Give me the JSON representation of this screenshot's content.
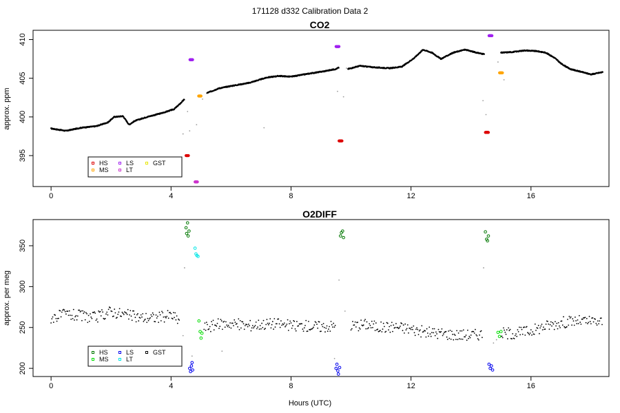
{
  "figure_title": "171128   d332   Calibration Data 2",
  "xlabel": "Hours (UTC)",
  "chart_data": [
    {
      "type": "scatter",
      "title": "CO2",
      "ylabel": "approx. ppm",
      "xlim": [
        -0.6,
        18.6
      ],
      "ylim": [
        391.0,
        411.2
      ],
      "xticks": [
        0,
        4,
        8,
        12,
        16
      ],
      "yticks": [
        395,
        400,
        405,
        410
      ],
      "grid": false,
      "legend_position": "bottom-left",
      "legend": [
        {
          "label": "HS",
          "color": "#dd0000"
        },
        {
          "label": "MS",
          "color": "#ffa500"
        },
        {
          "label": "LS",
          "color": "#a020f0"
        },
        {
          "label": "LT",
          "color": "#cc33cc"
        },
        {
          "label": "GST",
          "color": "#e6e600"
        }
      ],
      "ambient_series": {
        "color": "#000000",
        "segments": [
          [
            [
              0.0,
              398.5
            ],
            [
              0.5,
              398.2
            ],
            [
              1.0,
              398.6
            ],
            [
              1.5,
              398.8
            ],
            [
              1.9,
              399.3
            ],
            [
              2.1,
              400.0
            ],
            [
              2.4,
              400.1
            ],
            [
              2.6,
              399.0
            ],
            [
              2.8,
              399.5
            ],
            [
              3.2,
              400.0
            ],
            [
              3.7,
              400.5
            ],
            [
              4.1,
              401.0
            ],
            [
              4.3,
              401.7
            ],
            [
              4.45,
              402.3
            ]
          ],
          [
            [
              5.2,
              403.1
            ],
            [
              5.6,
              403.7
            ],
            [
              6.0,
              404.0
            ],
            [
              6.6,
              404.4
            ],
            [
              7.2,
              405.1
            ],
            [
              7.6,
              405.3
            ],
            [
              8.0,
              405.2
            ],
            [
              8.6,
              405.6
            ],
            [
              9.1,
              405.9
            ],
            [
              9.5,
              406.2
            ],
            [
              9.6,
              406.4
            ]
          ],
          [
            [
              9.9,
              406.2
            ],
            [
              10.3,
              406.6
            ],
            [
              10.8,
              406.4
            ],
            [
              11.3,
              406.3
            ],
            [
              11.7,
              406.5
            ],
            [
              12.1,
              407.6
            ],
            [
              12.4,
              408.7
            ],
            [
              12.7,
              408.3
            ],
            [
              13.0,
              407.5
            ],
            [
              13.4,
              408.3
            ],
            [
              13.8,
              408.7
            ],
            [
              14.2,
              408.3
            ],
            [
              14.45,
              408.1
            ]
          ],
          [
            [
              15.0,
              408.3
            ],
            [
              15.4,
              408.4
            ],
            [
              15.8,
              408.6
            ],
            [
              16.2,
              408.5
            ],
            [
              16.5,
              408.3
            ],
            [
              16.8,
              407.6
            ],
            [
              17.0,
              406.9
            ],
            [
              17.3,
              406.2
            ],
            [
              17.6,
              405.9
            ],
            [
              18.0,
              405.5
            ],
            [
              18.4,
              405.8
            ]
          ]
        ]
      },
      "calibration_points": [
        {
          "label": "HS",
          "color": "#dd0000",
          "x": [
            4.5,
            4.58
          ],
          "y": [
            395.0,
            395.0
          ]
        },
        {
          "label": "MS",
          "color": "#ffa500",
          "x": [
            4.92,
            5.0
          ],
          "y": [
            402.7,
            402.7
          ]
        },
        {
          "label": "LS",
          "color": "#a020f0",
          "x": [
            4.63,
            4.72
          ],
          "y": [
            407.4,
            407.4
          ]
        },
        {
          "label": "LT",
          "color": "#cc33cc",
          "x": [
            4.8,
            4.88
          ],
          "y": [
            391.6,
            391.6
          ]
        },
        {
          "label": "HS",
          "color": "#dd0000",
          "x": [
            9.6,
            9.7
          ],
          "y": [
            396.9,
            396.9
          ]
        },
        {
          "label": "LS",
          "color": "#a020f0",
          "x": [
            9.5,
            9.6
          ],
          "y": [
            409.1,
            409.1
          ]
        },
        {
          "label": "HS",
          "color": "#dd0000",
          "x": [
            14.48,
            14.58
          ],
          "y": [
            398.0,
            398.0
          ]
        },
        {
          "label": "MS",
          "color": "#ffa500",
          "x": [
            14.95,
            15.05
          ],
          "y": [
            405.7,
            405.7
          ]
        },
        {
          "label": "LS",
          "color": "#a020f0",
          "x": [
            14.6,
            14.7
          ],
          "y": [
            410.5,
            410.5
          ]
        }
      ],
      "transition_points": {
        "color": "#9a9a9a",
        "x": [
          4.4,
          4.55,
          4.62,
          4.85,
          5.05,
          7.1,
          9.55,
          9.75,
          9.85,
          14.4,
          14.5,
          14.9,
          15.1
        ],
        "y": [
          397.8,
          400.7,
          398.2,
          399.0,
          402.3,
          398.6,
          403.3,
          402.6,
          406.3,
          402.1,
          400.3,
          407.1,
          404.8
        ]
      }
    },
    {
      "type": "scatter",
      "title": "O2DIFF",
      "ylabel": "approx. per meg",
      "xlim": [
        -0.6,
        18.6
      ],
      "ylim": [
        190,
        382
      ],
      "xticks": [
        0,
        4,
        8,
        12,
        16
      ],
      "yticks": [
        200,
        250,
        300,
        350
      ],
      "grid": false,
      "legend_position": "bottom-left",
      "legend": [
        {
          "label": "HS",
          "color": "#007700"
        },
        {
          "label": "MS",
          "color": "#00dd00"
        },
        {
          "label": "LS",
          "color": "#0000ee"
        },
        {
          "label": "LT",
          "color": "#00e5e5"
        },
        {
          "label": "GST",
          "color": "#000000"
        }
      ],
      "ambient_series": {
        "color": "#000000",
        "segments": [
          [
            [
              0.0,
              262
            ],
            [
              0.5,
              266
            ],
            [
              1.0,
              264
            ],
            [
              1.5,
              262
            ],
            [
              2.0,
              270
            ],
            [
              2.4,
              266
            ],
            [
              3.0,
              262
            ],
            [
              3.5,
              262
            ],
            [
              4.0,
              265
            ],
            [
              4.3,
              258
            ]
          ],
          [
            [
              5.1,
              250
            ],
            [
              5.6,
              254
            ],
            [
              6.0,
              255
            ],
            [
              6.5,
              252
            ],
            [
              7.0,
              254
            ],
            [
              7.5,
              255
            ],
            [
              8.0,
              252
            ],
            [
              8.5,
              252
            ],
            [
              9.0,
              251
            ],
            [
              9.5,
              252
            ]
          ],
          [
            [
              10.0,
              252
            ],
            [
              10.5,
              254
            ],
            [
              11.0,
              250
            ],
            [
              11.5,
              251
            ],
            [
              12.0,
              248
            ],
            [
              12.5,
              244
            ],
            [
              13.0,
              243
            ],
            [
              13.5,
              241
            ],
            [
              14.0,
              241
            ],
            [
              14.4,
              242
            ]
          ],
          [
            [
              15.0,
              243
            ],
            [
              15.5,
              243
            ],
            [
              16.0,
              246
            ],
            [
              16.5,
              252
            ],
            [
              17.0,
              256
            ],
            [
              17.5,
              258
            ],
            [
              18.0,
              257
            ],
            [
              18.4,
              257
            ]
          ]
        ],
        "scatter_amplitude": 7
      },
      "calibration_points": [
        {
          "label": "HS",
          "color": "#007700",
          "x": [
            4.5,
            4.52,
            4.55,
            4.57,
            4.6
          ],
          "y": [
            372,
            365,
            378,
            362,
            368
          ]
        },
        {
          "label": "LS",
          "color": "#0000ee",
          "x": [
            4.62,
            4.65,
            4.68,
            4.7,
            4.72
          ],
          "y": [
            200,
            196,
            203,
            207,
            198
          ]
        },
        {
          "label": "LT",
          "color": "#00e5e5",
          "x": [
            4.8,
            4.83,
            4.86,
            4.9
          ],
          "y": [
            347,
            340,
            338,
            337
          ]
        },
        {
          "label": "MS",
          "color": "#00dd00",
          "x": [
            4.93,
            4.97,
            5.0,
            5.03
          ],
          "y": [
            258,
            245,
            237,
            243
          ]
        },
        {
          "label": "LS",
          "color": "#0000ee",
          "x": [
            9.5,
            9.53,
            9.56,
            9.58,
            9.62
          ],
          "y": [
            200,
            205,
            197,
            193,
            201
          ]
        },
        {
          "label": "HS",
          "color": "#007700",
          "x": [
            9.65,
            9.68,
            9.72,
            9.75
          ],
          "y": [
            362,
            366,
            368,
            360
          ]
        },
        {
          "label": "HS",
          "color": "#007700",
          "x": [
            14.48,
            14.52,
            14.55,
            14.58
          ],
          "y": [
            367,
            358,
            356,
            362
          ]
        },
        {
          "label": "LS",
          "color": "#0000ee",
          "x": [
            14.6,
            14.64,
            14.68,
            14.72
          ],
          "y": [
            205,
            200,
            203,
            198
          ]
        },
        {
          "label": "MS",
          "color": "#00dd00",
          "x": [
            14.9,
            14.95,
            15.0
          ],
          "y": [
            244,
            239,
            245
          ]
        }
      ],
      "transition_points": {
        "color": "#9a9a9a",
        "x": [
          4.4,
          4.45,
          4.7,
          5.7,
          9.45,
          9.6,
          9.8,
          14.42,
          14.75,
          14.85
        ],
        "y": [
          240,
          323,
          215,
          221,
          212,
          308,
          270,
          323,
          231,
          235
        ]
      }
    }
  ]
}
